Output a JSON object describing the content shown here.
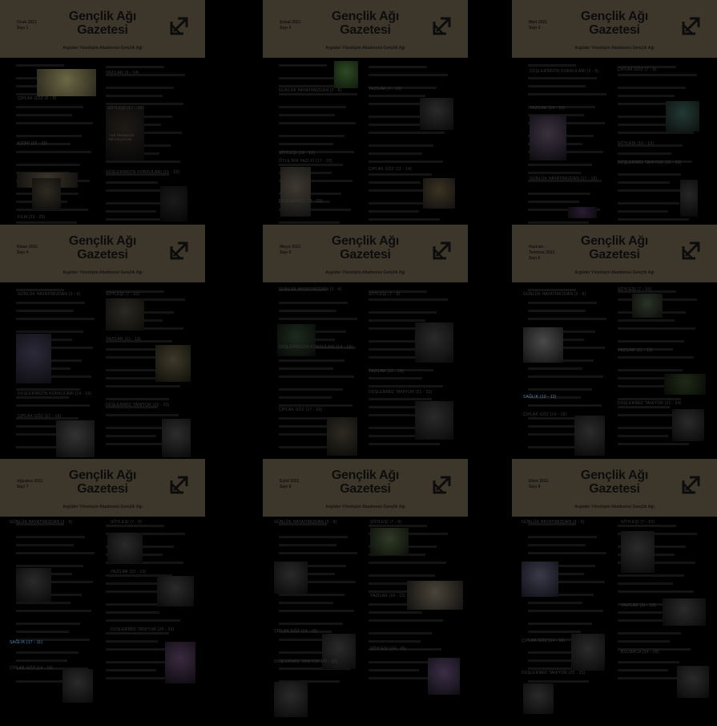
{
  "colors": {
    "header_bg": "#3d372b",
    "page_bg": "#000000",
    "text": "#3a3a3a",
    "highlight": "#4e89b7"
  },
  "brand": {
    "title_line1": "Gençlik Ağı",
    "title_line2": "Gazetesi",
    "tagline": "Argüder Yönetişim Akademisi Gençlik Ağı",
    "logo_icon": "diagonal-arrow-box-icon"
  },
  "issues": [
    {
      "month": "Ocak 2021",
      "number": "Sayı 1",
      "sections": [
        "ÇIPLAK GÖZ (5 - 8)",
        "YAZILAR (9 - 14)",
        "KİTAP (15 - 16)",
        "SÖYLEŞİ (17 - 18)",
        "DÜŞLERİMİZİN KORKULARI (21 - 22)",
        "FİLM (23 - 25)"
      ],
      "poster_text": "THE PARADISE REVOLUTION"
    },
    {
      "month": "Şubat 2021",
      "number": "Sayı 2",
      "sections": [
        "GÜNLÜK HAYATIMIZDAN (3 - 6)",
        "YAZILAR (7 - 10)",
        "ÇIPLAK GÖZ (11 - 14)",
        "SÖYLEŞİ (15 - 16)",
        "ÖYLE BİR YAZI Kİ (17 - 20)",
        "DÜŞLERİMİZ (21 - 23)"
      ]
    },
    {
      "month": "Mart 2021",
      "number": "Sayı 3",
      "sections": [
        "DÜŞLERİMİZİN KORKULARI (3 - 6)",
        "ÇIPLAK GÖZ (7 - 9)",
        "SÖYLEŞİ (10 - 13)",
        "YAZILAR (14 - 16)",
        "GÜNLÜK HAYATIMIZDAN (17 - 19)",
        "DÜŞLERİMİZ TANIYOR (20 - 23)"
      ]
    },
    {
      "month": "Nisan 2021",
      "number": "Sayı 4",
      "sections": [
        "GÜNLÜK HAYATIMIZDAN (3 - 6)",
        "SÖYLEŞİ (7 - 10)",
        "YAZILAR (11 - 13)",
        "DÜŞLERİMİZİN KORKULARI (14 - 16)",
        "ÇIPLAK GÖZ (17 - 19)",
        "DÜŞLERİMİZ TANIYOR (20 - 23)"
      ]
    },
    {
      "month": "Mayıs 2021",
      "number": "Sayı 5",
      "sections": [
        "GÜNLÜK HAYATIMIZDAN (3 - 6)",
        "SÖYLEŞİ (7 - 9)",
        "YAZILAR (10 - 13)",
        "DÜŞLERİMİZİN KORKULARI (14 - 16)",
        "ÇIPLAK GÖZ (17 - 20)",
        "DÜŞLERİMİZ TANIYOR (21 - 23)"
      ]
    },
    {
      "month": "Haziran - Temmuz 2021",
      "number": "Sayı 6",
      "sections": [
        "GÜNLÜK HAYATIMIZDAN (3 - 6)",
        "SÖYLEŞİ (7 - 10)",
        "YAZILAR (11 - 13)",
        "SAĞLIK (13 - 12)",
        "ÇIPLAK GÖZ (14 - 16)",
        "DÜŞLERİMİZ TANIYOR (21 - 24)"
      ]
    },
    {
      "month": "Ağustos 2021",
      "number": "Sayı 7",
      "sections": [
        "GÜNLÜK HAYATIMIZDAN (3 - 6)",
        "SÖYLEŞİ (7 - 9)",
        "YAZILAR (10 - 13)",
        "SAĞLIK (17 - 11)",
        "ÇIPLAK GÖZ (14 - 16)",
        "DÜŞLERİMİZ TANIYOR (20 - 23)"
      ]
    },
    {
      "month": "Eylül 2021",
      "number": "Sayı 8",
      "sections": [
        "GÜNLÜK HAYATIMIZDAN (3 - 6)",
        "SÖYLEŞİ (7 - 9)",
        "YAZILAR (10 - 13)",
        "ÇIPLAK GÖZ (14 - 16)",
        "DÜŞLERİMİZ TANIYOR (20 - 23)",
        "SÖYLEŞİ (24 - 26)"
      ]
    },
    {
      "month": "Ekim 2021",
      "number": "Sayı 9",
      "sections": [
        "GÜNLÜK HAYATIMIZDAN (3 - 6)",
        "SÖYLEŞİ (7 - 10)",
        "YAZILAR (11 - 13)",
        "ÇIPLAK GÖZ (14 - 16)",
        "DÜŞLERİMİZ TANIYOR (20 - 23)",
        "BULMACA (24 - 25)"
      ]
    }
  ]
}
